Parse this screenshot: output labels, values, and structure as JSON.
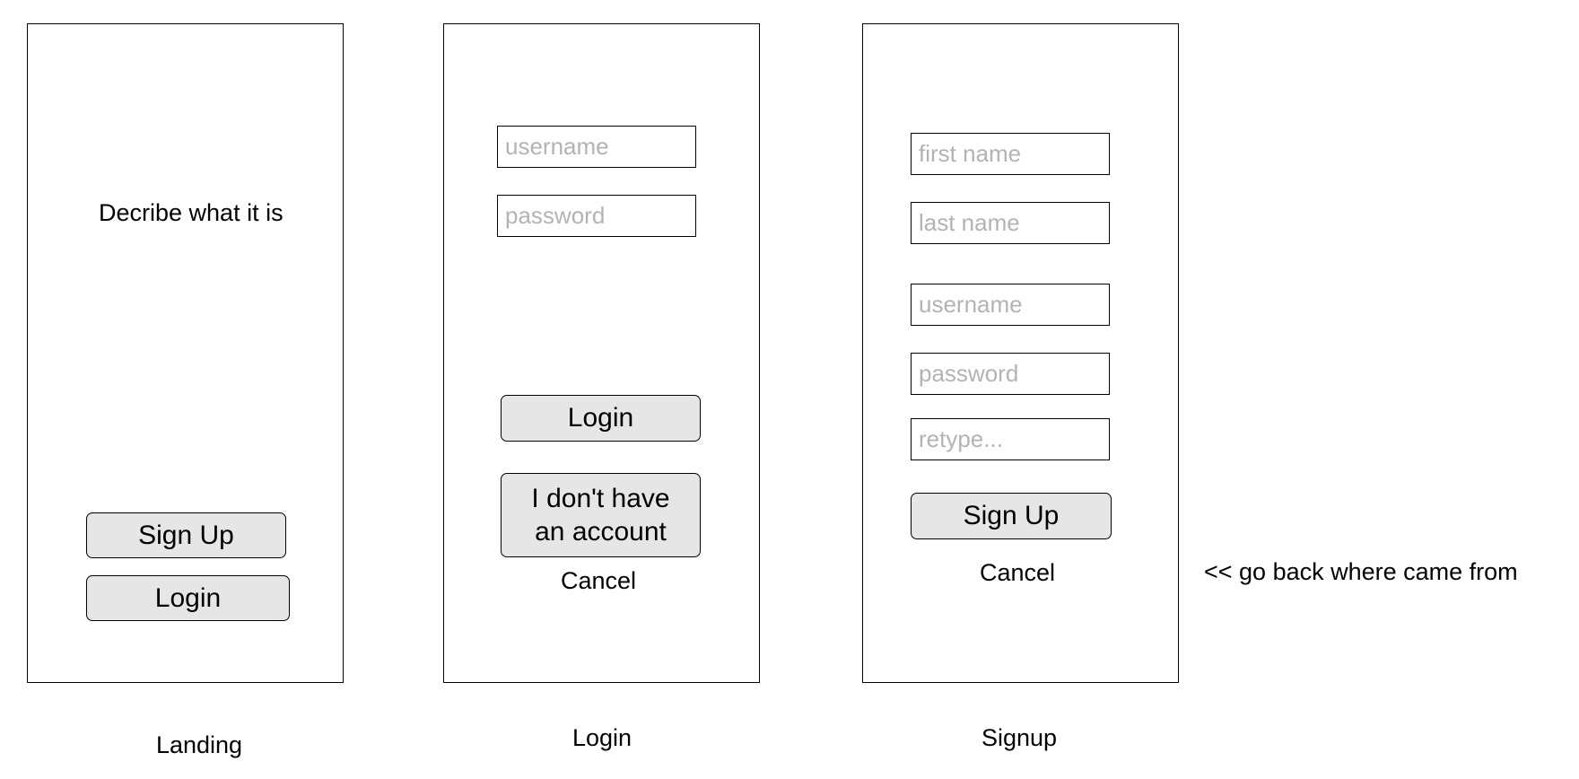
{
  "screens": {
    "landing": {
      "caption": "Landing",
      "description": "Decribe what it is",
      "signup_button": "Sign Up",
      "login_button": "Login"
    },
    "login": {
      "caption": "Login",
      "username_placeholder": "username",
      "password_placeholder": "password",
      "login_button": "Login",
      "no_account_button": "I don't have an account",
      "cancel_link": "Cancel"
    },
    "signup": {
      "caption": "Signup",
      "first_name_placeholder": "first name",
      "last_name_placeholder": "last name",
      "username_placeholder": "username",
      "password_placeholder": "password",
      "retype_placeholder": "retype...",
      "signup_button": "Sign Up",
      "cancel_link": "Cancel"
    }
  },
  "annotation": "<< go back where came from"
}
